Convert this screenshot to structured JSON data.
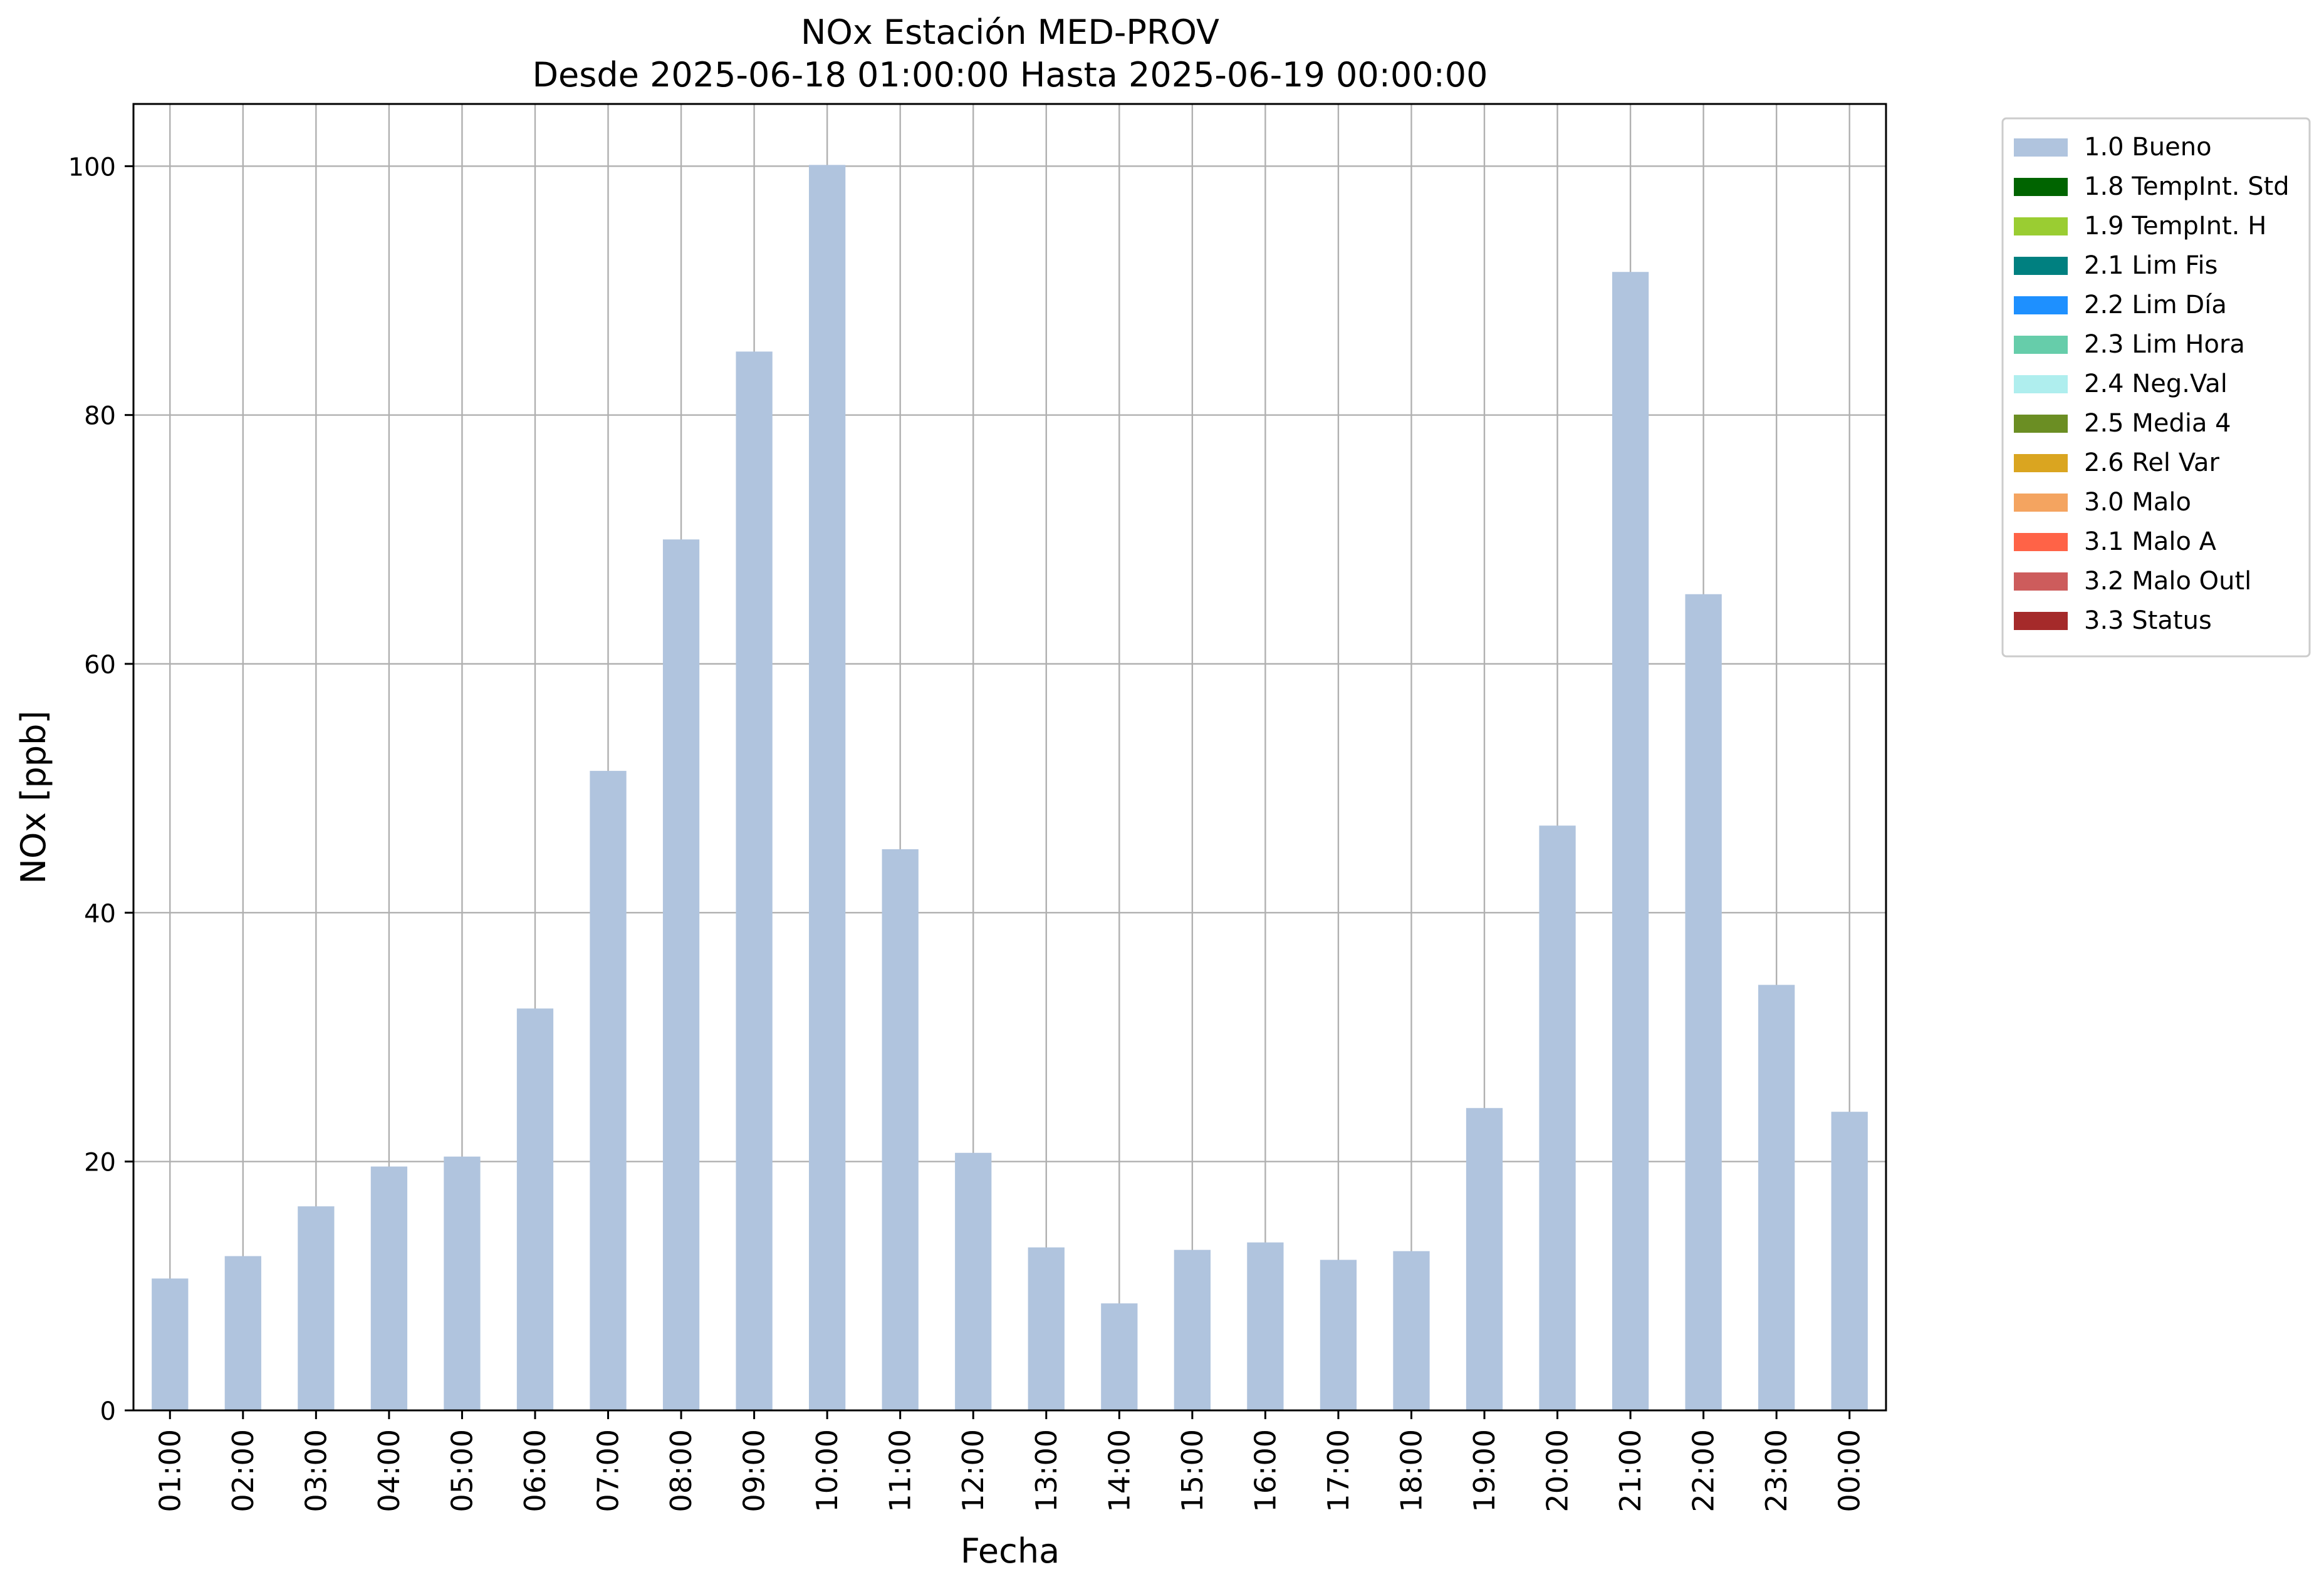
{
  "chart_data": {
    "type": "bar",
    "title": "NOx Estación MED-PROV",
    "subtitle": "Desde 2025-06-18 01:00:00 Hasta 2025-06-19 00:00:00",
    "xlabel": "Fecha",
    "ylabel": "NOx [ppb]",
    "ylim": [
      0,
      105
    ],
    "yticks": [
      0,
      20,
      40,
      60,
      80,
      100
    ],
    "grid": true,
    "legend_position": "outside-top-right",
    "categories": [
      "01:00",
      "02:00",
      "03:00",
      "04:00",
      "05:00",
      "06:00",
      "07:00",
      "08:00",
      "09:00",
      "10:00",
      "11:00",
      "12:00",
      "13:00",
      "14:00",
      "15:00",
      "16:00",
      "17:00",
      "18:00",
      "19:00",
      "20:00",
      "21:00",
      "22:00",
      "23:00",
      "00:00"
    ],
    "series": [
      {
        "name": "1.0 Bueno",
        "color": "#b0c4de",
        "values": [
          10.6,
          12.4,
          16.4,
          19.6,
          20.4,
          32.3,
          51.4,
          70.0,
          85.1,
          100.1,
          45.1,
          20.7,
          13.1,
          8.6,
          12.9,
          13.5,
          12.1,
          12.8,
          24.3,
          47.0,
          91.5,
          65.6,
          34.2,
          24.0
        ]
      }
    ],
    "legend": [
      {
        "label": "1.0 Bueno",
        "color": "#b0c4de"
      },
      {
        "label": "1.8 TempInt. Std",
        "color": "#006400"
      },
      {
        "label": "1.9 TempInt. H",
        "color": "#9acd32"
      },
      {
        "label": "2.1 Lim Fis",
        "color": "#008080"
      },
      {
        "label": "2.2 Lim Día",
        "color": "#1e90ff"
      },
      {
        "label": "2.3 Lim Hora",
        "color": "#66cdaa"
      },
      {
        "label": "2.4 Neg.Val",
        "color": "#afeeee"
      },
      {
        "label": "2.5 Media 4",
        "color": "#6b8e23"
      },
      {
        "label": "2.6 Rel Var",
        "color": "#daa520"
      },
      {
        "label": "3.0 Malo",
        "color": "#f4a460"
      },
      {
        "label": "3.1 Malo A",
        "color": "#ff6347"
      },
      {
        "label": "3.2 Malo Outl",
        "color": "#cd5c5c"
      },
      {
        "label": "3.3 Status",
        "color": "#a52a2a"
      }
    ]
  }
}
